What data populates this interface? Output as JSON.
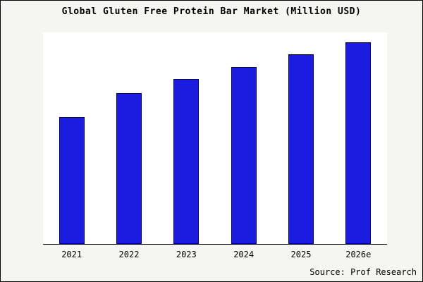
{
  "chart_data": {
    "type": "bar",
    "title": "Global Gluten Free Protein Bar Market (Million USD)",
    "categories": [
      "2021",
      "2022",
      "2023",
      "2024",
      "2025",
      "2026e"
    ],
    "values": [
      63,
      75,
      82,
      88,
      94,
      100
    ],
    "xlabel": "",
    "ylabel": "",
    "ylim": [
      0,
      105
    ],
    "grid": false,
    "legend": "none",
    "bar_color": "#1c1ce0",
    "bar_border_color": "#000060",
    "source": "Source: Prof Research"
  }
}
